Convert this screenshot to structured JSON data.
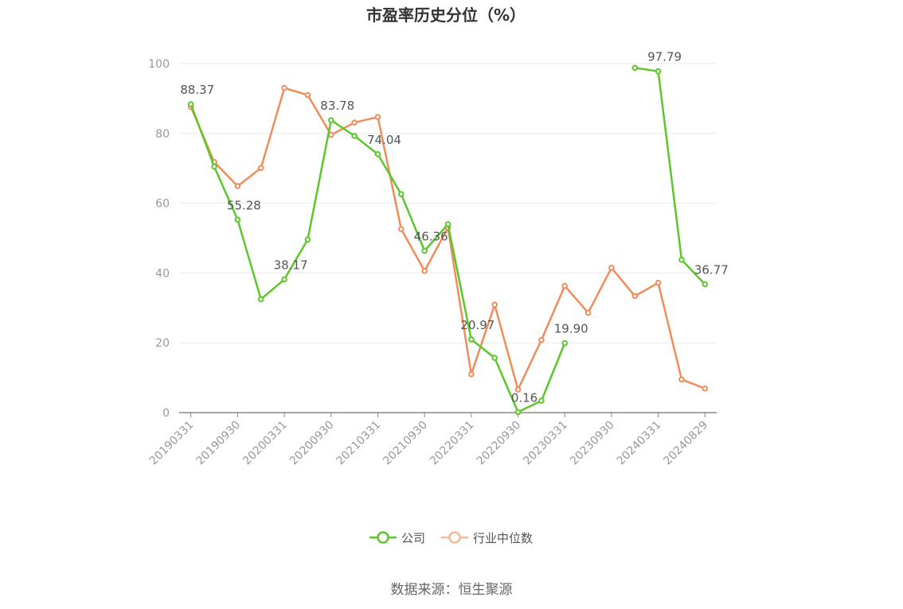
{
  "chart_data": {
    "type": "line",
    "title": "市盈率历史分位（%）",
    "ylim": [
      0,
      100
    ],
    "yticks": [
      0,
      20,
      40,
      60,
      80,
      100
    ],
    "x": [
      "20190331",
      "20190630",
      "20190930",
      "20191231",
      "20200331",
      "20200630",
      "20200930",
      "20201231",
      "20210331",
      "20210630",
      "20210930",
      "20211231",
      "20220331",
      "20220630",
      "20220930",
      "20221231",
      "20230331",
      "20230630",
      "20230930",
      "20231231",
      "20240331",
      "20240630",
      "20240829"
    ],
    "xtick_labels": [
      "20190331",
      "20190930",
      "20200331",
      "20200930",
      "20210331",
      "20210930",
      "20220331",
      "20220930",
      "20230331",
      "20230930",
      "20240331",
      "20240829"
    ],
    "series": [
      {
        "name": "公司",
        "color": "#5cc72a",
        "values": [
          88.37,
          70.5,
          55.28,
          32.5,
          38.17,
          49.6,
          83.78,
          79.3,
          74.04,
          62.6,
          46.36,
          54.0,
          20.97,
          15.7,
          0.16,
          3.4,
          19.9,
          null,
          null,
          98.8,
          97.79,
          43.8,
          36.77
        ],
        "labels": [
          {
            "i": 0,
            "text": "88.37"
          },
          {
            "i": 2,
            "text": "55.28"
          },
          {
            "i": 4,
            "text": "38.17"
          },
          {
            "i": 6,
            "text": "83.78"
          },
          {
            "i": 8,
            "text": "74.04"
          },
          {
            "i": 10,
            "text": "46.36"
          },
          {
            "i": 12,
            "text": "20.97"
          },
          {
            "i": 14,
            "text": "0.16"
          },
          {
            "i": 16,
            "text": "19.90"
          },
          {
            "i": 20,
            "text": "97.79"
          },
          {
            "i": 22,
            "text": "36.77"
          }
        ]
      },
      {
        "name": "行业中位数",
        "color": "#f08c5a",
        "values": [
          87.6,
          71.8,
          64.9,
          70.1,
          93.0,
          91.0,
          79.6,
          83.1,
          84.7,
          52.6,
          40.6,
          53.0,
          11.0,
          30.9,
          6.6,
          20.8,
          36.3,
          28.6,
          41.5,
          33.4,
          37.2,
          9.5,
          6.9
        ]
      }
    ],
    "legend": [
      {
        "name": "公司",
        "color": "#5cc72a"
      },
      {
        "name": "行业中位数",
        "color": "#f8b898"
      }
    ],
    "legend_position": "bottom-center",
    "grid": true
  },
  "source_text": "数据来源：恒生聚源"
}
